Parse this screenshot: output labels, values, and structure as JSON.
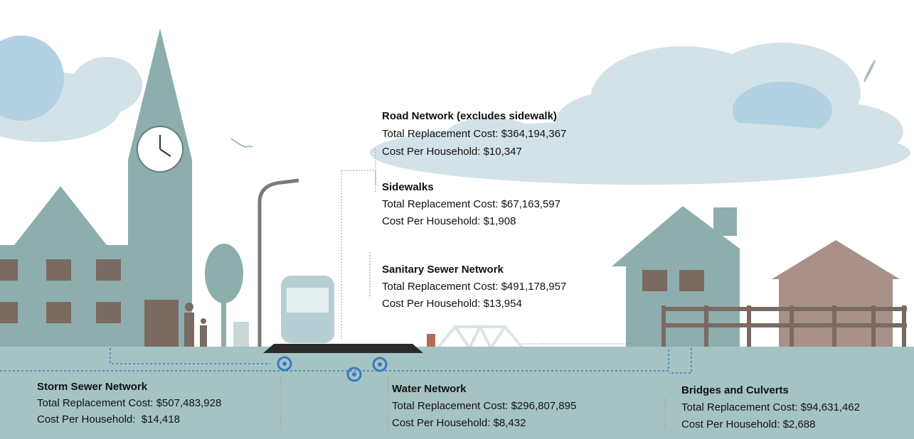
{
  "assets": [
    {
      "name": "Road Network (excludes sidewalk)",
      "lines": [
        "Total Replacement Cost: $364,194,367",
        "Cost Per Household: $10,347"
      ]
    },
    {
      "name": "Sidewalks",
      "lines": [
        "Total Replacement Cost: $67,163,597",
        "Cost Per Household: $1,908"
      ]
    },
    {
      "name": "Sanitary Sewer Network",
      "lines": [
        "Total Replacement Cost: $491,178,957",
        "Cost Per Household: $13,954"
      ]
    },
    {
      "name": "Storm Sewer Network",
      "lines": [
        "Total Replacement Cost: $507,483,928",
        "Cost Per Household:  $14,418"
      ]
    },
    {
      "name": "Water Network",
      "lines": [
        "Total Replacement Cost: $296,807,895",
        "Cost Per Household: $8,432"
      ]
    },
    {
      "name": "Bridges and Culverts",
      "lines": [
        "Total Replacement Cost: $94,631,462",
        "Cost Per Household: $2,688"
      ]
    }
  ]
}
